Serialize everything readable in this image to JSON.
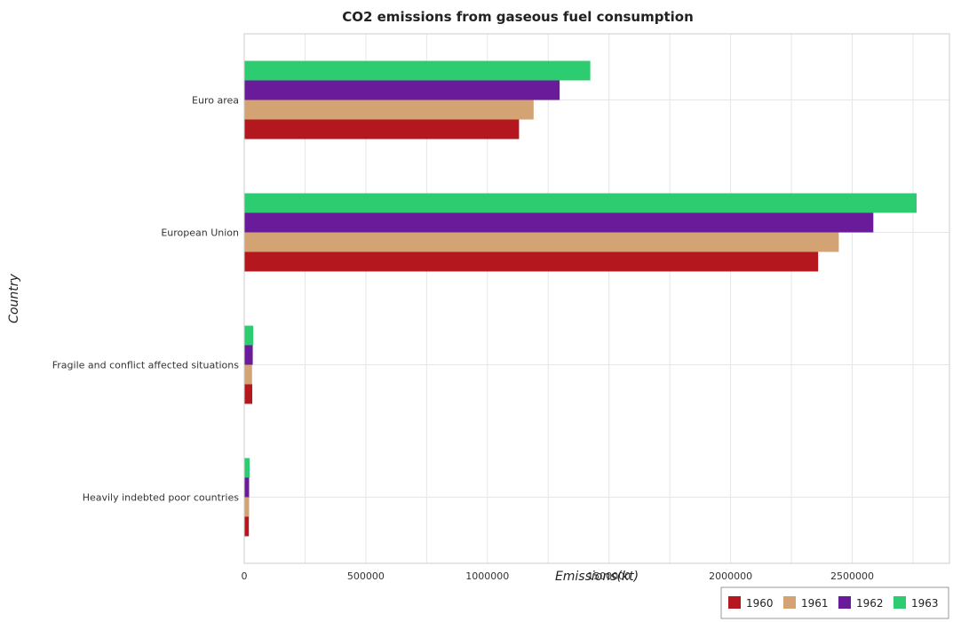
{
  "chart_data": {
    "type": "bar",
    "orientation": "horizontal",
    "title": "CO2 emissions from gaseous fuel consumption",
    "xlabel": "Emissions(kt)",
    "ylabel": "Country",
    "xlim": [
      0,
      2900000
    ],
    "x_ticks": [
      0,
      500000,
      1000000,
      1500000,
      2000000,
      2500000
    ],
    "x_tick_labels": [
      "0",
      "500000",
      "1000000",
      "1500000",
      "2000000",
      "2500000"
    ],
    "categories": [
      "Euro area",
      "European Union",
      "Fragile and conflict affected situations",
      "Heavily indebted poor countries"
    ],
    "series": [
      {
        "name": "1960",
        "color": "#b5171e",
        "values": [
          1130000,
          2360000,
          33000,
          19000
        ]
      },
      {
        "name": "1961",
        "color": "#d4a373",
        "values": [
          1190000,
          2445000,
          32000,
          20000
        ]
      },
      {
        "name": "1962",
        "color": "#6a1b9a",
        "values": [
          1297000,
          2587000,
          35000,
          20000
        ]
      },
      {
        "name": "1963",
        "color": "#2ecc71",
        "values": [
          1423000,
          2765000,
          37000,
          22000
        ]
      }
    ],
    "grid": true,
    "legend_position": "bottom-right"
  }
}
